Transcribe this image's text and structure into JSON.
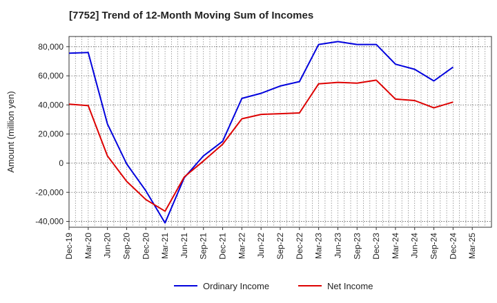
{
  "chart_data": {
    "type": "line",
    "title": "[7752]  Trend of 12-Month Moving Sum of Incomes",
    "xlabel": "",
    "ylabel": "Amount (million yen)",
    "ylim": [
      -44000,
      87000
    ],
    "yticks": [
      -40000,
      -20000,
      0,
      20000,
      40000,
      60000,
      80000
    ],
    "ytick_labels": [
      "-40,000",
      "-20,000",
      "0",
      "20,000",
      "40,000",
      "60,000",
      "80,000"
    ],
    "categories": [
      "Dec-19",
      "Mar-20",
      "Jun-20",
      "Sep-20",
      "Dec-20",
      "Mar-21",
      "Jun-21",
      "Sep-21",
      "Dec-21",
      "Mar-22",
      "Jun-22",
      "Sep-22",
      "Dec-22",
      "Mar-23",
      "Jun-23",
      "Sep-23",
      "Dec-23",
      "Mar-24",
      "Jun-24",
      "Sep-24",
      "Dec-24",
      "Mar-25"
    ],
    "grid": true,
    "legend_position": "bottom",
    "series": [
      {
        "name": "Ordinary Income",
        "color": "#0000dd",
        "values": [
          75500,
          76000,
          27000,
          -500,
          -19000,
          -41000,
          -10000,
          5000,
          15000,
          44500,
          48000,
          53000,
          56000,
          81500,
          83500,
          81500,
          81500,
          68000,
          64500,
          56500,
          66000,
          null
        ]
      },
      {
        "name": "Net Income",
        "color": "#dd0000",
        "values": [
          40500,
          39500,
          5000,
          -12500,
          -25000,
          -33000,
          -9500,
          1500,
          13000,
          30500,
          33500,
          34000,
          34500,
          54500,
          55500,
          55000,
          57000,
          44000,
          43000,
          38000,
          42000,
          null
        ]
      }
    ]
  }
}
